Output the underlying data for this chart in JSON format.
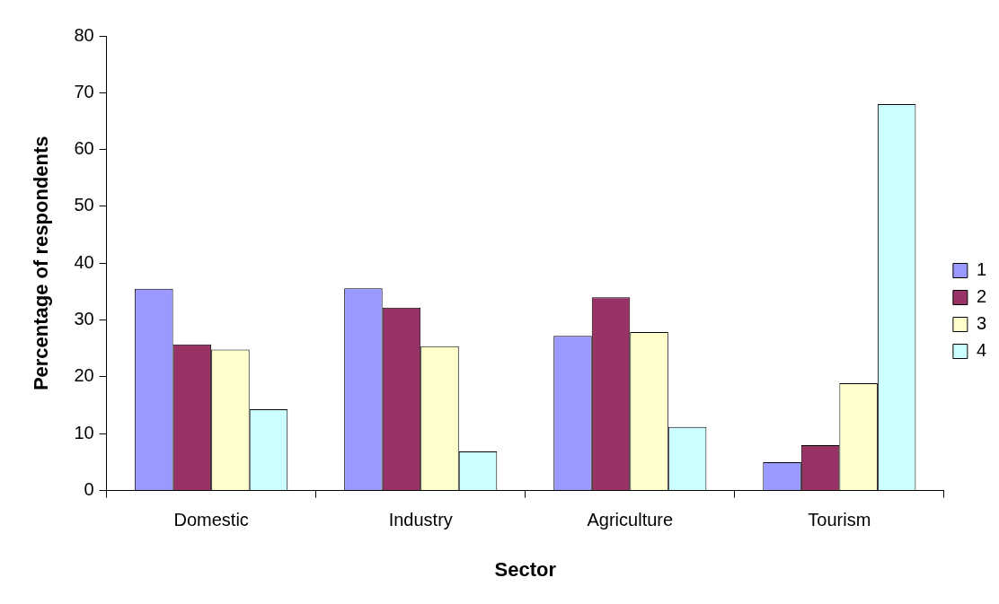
{
  "chart_data": {
    "type": "bar",
    "xlabel": "Sector",
    "ylabel": "Percentage of respondents",
    "categories": [
      "Domestic",
      "Industry",
      "Agriculture",
      "Tourism"
    ],
    "series": [
      {
        "name": "1",
        "color": "#9999ff",
        "values": [
          35.5,
          35.6,
          27.2,
          5.0
        ]
      },
      {
        "name": "2",
        "color": "#993366",
        "values": [
          25.7,
          32.2,
          34.0,
          8.0
        ]
      },
      {
        "name": "3",
        "color": "#ffffcc",
        "values": [
          24.8,
          25.4,
          27.9,
          18.9
        ]
      },
      {
        "name": "4",
        "color": "#ccffff",
        "values": [
          14.3,
          6.9,
          11.2,
          68.0
        ]
      }
    ],
    "ylim": [
      0,
      80
    ],
    "yticks": [
      0,
      10,
      20,
      30,
      40,
      50,
      60,
      70,
      80
    ],
    "grid": false,
    "legend": "right"
  }
}
